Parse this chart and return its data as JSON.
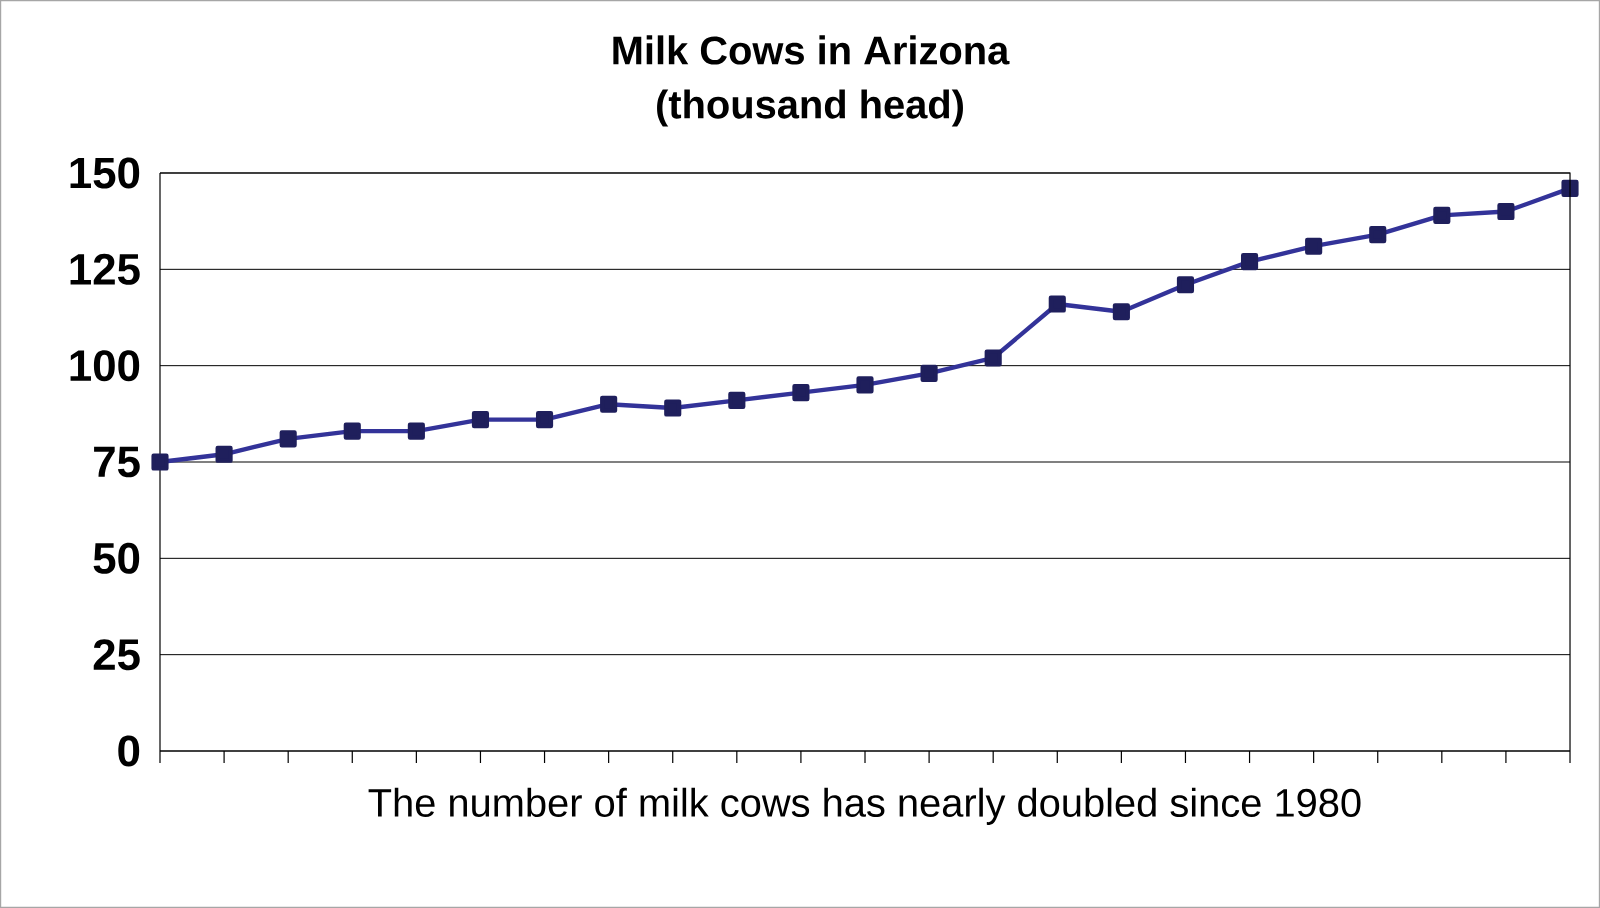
{
  "chart_data": {
    "type": "line",
    "title": "Milk Cows in Arizona",
    "subtitle": "(thousand head)",
    "xlabel": "The number of milk cows has nearly doubled since 1980",
    "categories": [
      null,
      null,
      null,
      null,
      null,
      null,
      null,
      null,
      null,
      null,
      null,
      null,
      null,
      null,
      null,
      null,
      null,
      null,
      null,
      null,
      null,
      null,
      null
    ],
    "series": [
      {
        "color": "#333399",
        "values": [
          75,
          77,
          81,
          83,
          83,
          86,
          86,
          90,
          89,
          91,
          93,
          95,
          98,
          102,
          116,
          114,
          121,
          127,
          131,
          134,
          139,
          140,
          146
        ]
      }
    ],
    "ylim": [
      0,
      150
    ],
    "yticks": [
      0,
      25,
      50,
      75,
      100,
      125,
      150
    ],
    "grid": "y",
    "marker": "square",
    "line_style": "solid",
    "tick_labels": "y"
  }
}
